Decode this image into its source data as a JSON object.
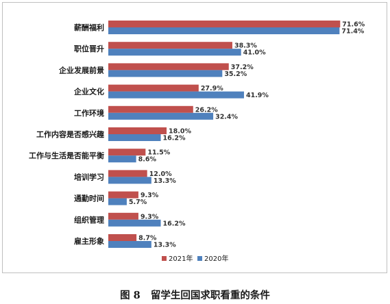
{
  "chart_data": {
    "type": "bar",
    "orientation": "horizontal",
    "categories": [
      "薪酬福利",
      "职位晋升",
      "企业发展前景",
      "企业文化",
      "工作环境",
      "工作内容是否感兴趣",
      "工作与生活是否能平衡",
      "培训学习",
      "通勤时间",
      "组织管理",
      "雇主形象"
    ],
    "series": [
      {
        "name": "2021年",
        "color": "#c0504d",
        "values": [
          71.6,
          38.3,
          37.2,
          27.9,
          26.2,
          18.0,
          11.5,
          12.0,
          9.3,
          9.3,
          8.7
        ],
        "labels": [
          "71.6%",
          "38.3%",
          "37.2%",
          "27.9%",
          "26.2%",
          "18.0%",
          "11.5%",
          "12.0%",
          "9.3%",
          "9.3%",
          "8.7%"
        ]
      },
      {
        "name": "2020年",
        "color": "#4f81bd",
        "values": [
          71.4,
          41.0,
          35.2,
          41.9,
          32.4,
          16.2,
          8.6,
          13.3,
          5.7,
          16.2,
          13.3
        ],
        "labels": [
          "71.4%",
          "41.0%",
          "35.2%",
          "41.9%",
          "32.4%",
          "16.2%",
          "8.6%",
          "13.3%",
          "5.7%",
          "16.2%",
          "13.3%"
        ]
      }
    ],
    "xlim": [
      0,
      80
    ],
    "grid": false,
    "legend_position": "bottom",
    "caption": "图 8   留学生回国求职看重的条件"
  }
}
